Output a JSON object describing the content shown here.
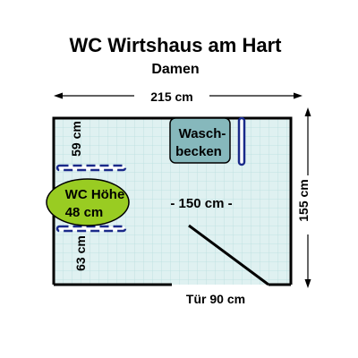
{
  "header": {
    "title": "WC Wirtshaus am Hart",
    "subtitle": "Damen"
  },
  "dimensions": {
    "width": "215 cm",
    "depth": "155 cm",
    "inner_span": "- 150 cm -",
    "wc_upper_gap": "59 cm",
    "wc_lower_gap": "63 cm",
    "door": "Tür 90 cm"
  },
  "fixtures": {
    "sink_line1": "Wasch-",
    "sink_line2": "becken",
    "wc_line1": "WC Höhe",
    "wc_line2": "48 cm"
  },
  "colors": {
    "floor_tile": "#dff1f1",
    "tile_line": "#b9dede",
    "wall": "#000000",
    "sink": "#86b8bc",
    "wc": "#99cc22",
    "grab_bar": "#1a2a8a",
    "grab_bar_fill": "#ffffff"
  }
}
